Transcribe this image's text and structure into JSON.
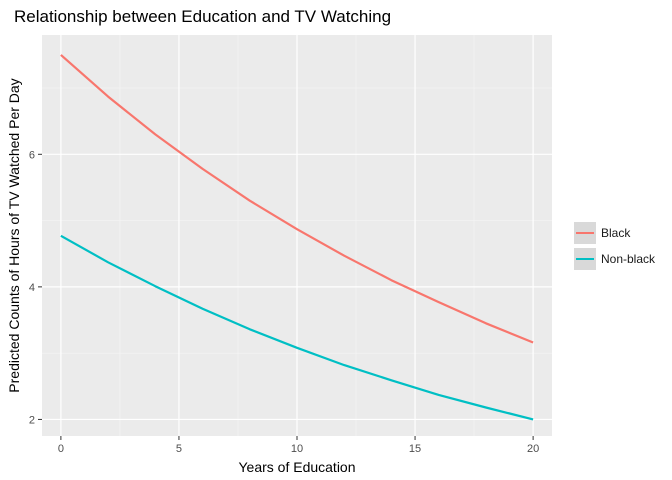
{
  "chart_data": {
    "type": "line",
    "title": "Relationship between Education and TV Watching",
    "xlabel": "Years of Education",
    "ylabel": "Predicted Counts of Hours of TV Watched Per Day",
    "xlim": [
      -0.8,
      20.8
    ],
    "ylim": [
      1.75,
      7.8
    ],
    "x_ticks": [
      0,
      5,
      10,
      15,
      20
    ],
    "y_ticks": [
      2,
      4,
      6
    ],
    "grid": true,
    "legend_position": "right",
    "x": [
      0,
      2,
      4,
      6,
      8,
      10,
      12,
      14,
      16,
      18,
      20
    ],
    "series": [
      {
        "name": "Black",
        "color": "#F8766D",
        "values": [
          7.5,
          6.87,
          6.3,
          5.78,
          5.3,
          4.87,
          4.47,
          4.1,
          3.77,
          3.45,
          3.16
        ]
      },
      {
        "name": "Non-black",
        "color": "#00BFC4",
        "values": [
          4.77,
          4.37,
          4.01,
          3.67,
          3.36,
          3.08,
          2.82,
          2.59,
          2.37,
          2.18,
          2.0
        ]
      }
    ]
  }
}
